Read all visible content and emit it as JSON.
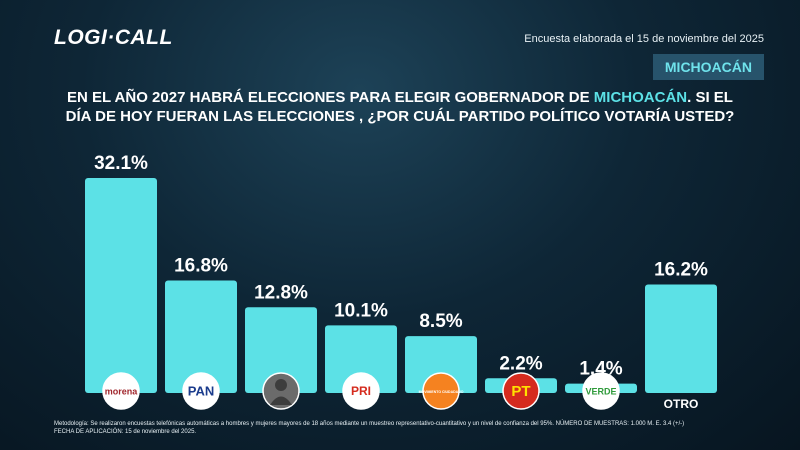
{
  "header": {
    "brand": "LOGI·CALL",
    "date_note": "Encuesta elaborada el 15 de noviembre del 2025",
    "region": "MICHOACÁN"
  },
  "chart_data": {
    "type": "bar",
    "title_parts": [
      "EN EL AÑO 2027 HABRÁ ELECCIONES PARA ELEGIR GOBERNADOR DE ",
      "MICHOACÁN",
      ".  SI EL DÍA DE HOY FUERAN LAS ELECCIONES , ¿POR CUÁL PARTIDO POLÍTICO VOTARÍA USTED?"
    ],
    "categories": [
      "morena",
      "PAN",
      null,
      "PRI",
      "MOVIMIENTO CIUDADANO",
      "PT",
      "VERDE",
      "OTRO"
    ],
    "values": [
      32.1,
      16.8,
      12.8,
      10.1,
      8.5,
      2.2,
      1.4,
      16.2
    ],
    "value_labels": [
      "32.1%",
      "16.8%",
      "12.8%",
      "10.1%",
      "8.5%",
      "2.2%",
      "1.4%",
      "16.2%"
    ],
    "color": "#5ce1e6"
  },
  "footer": {
    "methodology": [
      "Metodología: Se realizaron encuestas telefónicas automáticas a hombres y mujeres mayores de 18 años mediante un muestreo representativo-cuantitativo y un nivel de confianza del 95%. NÚMERO DE MUESTRAS: 1.000 M. E. 3.4 (+/-)",
      "FECHA DE APLICACIÓN: 15 de noviembre del 2025."
    ]
  }
}
